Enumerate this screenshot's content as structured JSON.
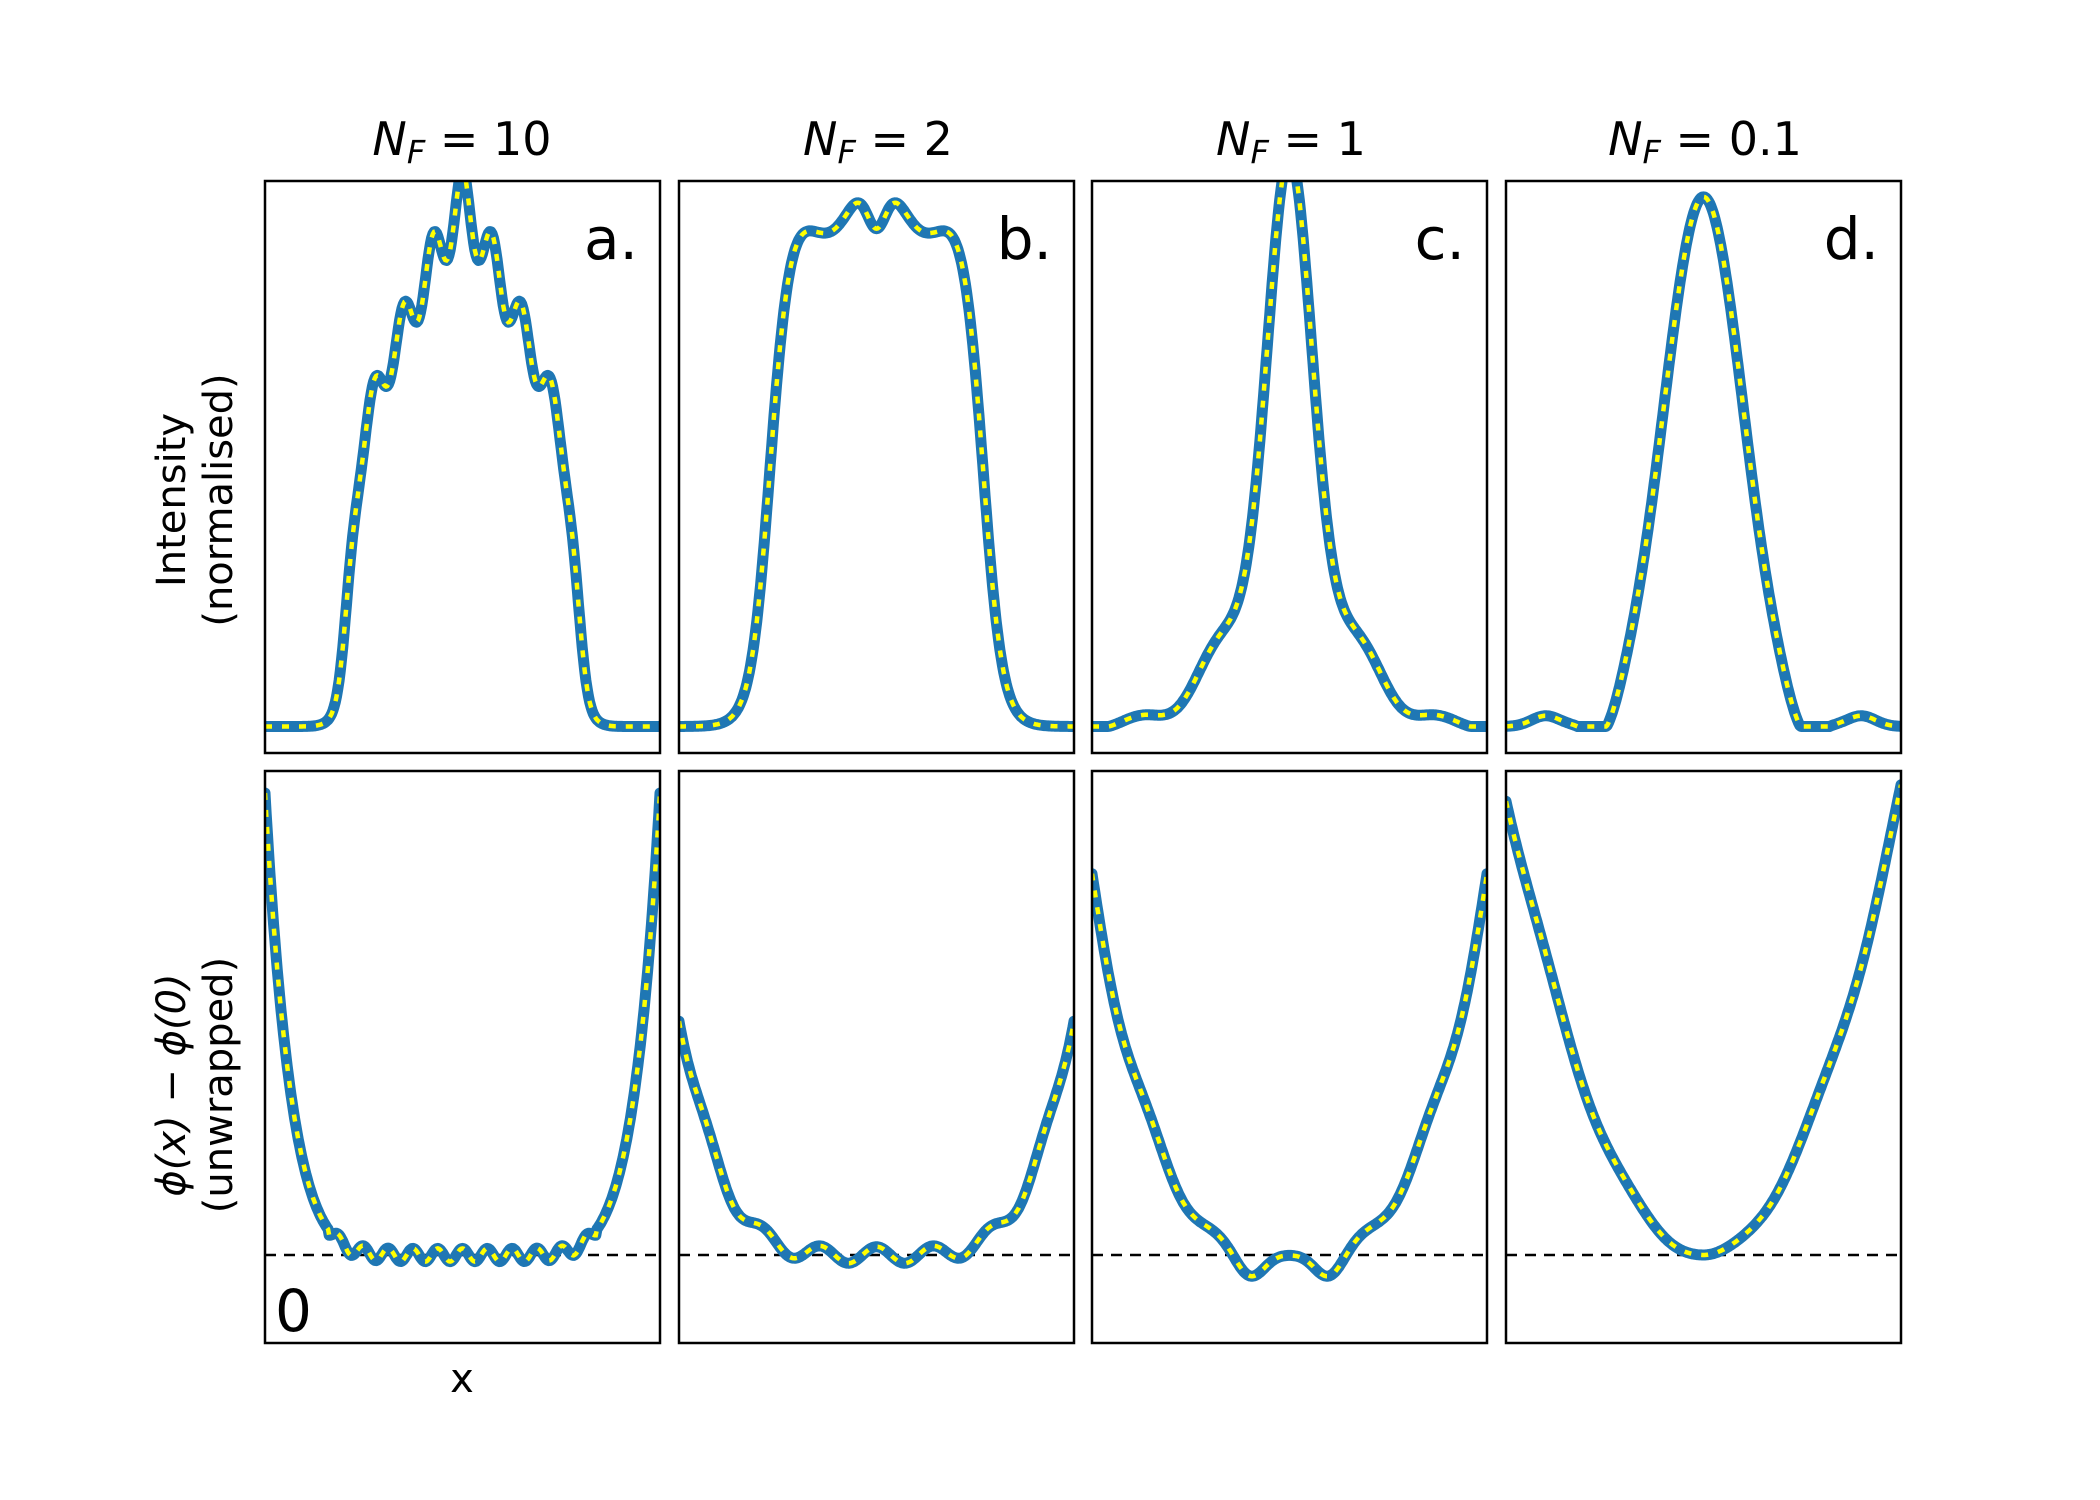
{
  "chart_data": {
    "type": "line",
    "layout": {
      "rows": 2,
      "cols": 4
    },
    "column_titles": [
      "N_F = 10",
      "N_F = 2",
      "N_F = 1",
      "N_F = 0.1"
    ],
    "column_title_parts": [
      {
        "sub": "F",
        "value": "10"
      },
      {
        "sub": "F",
        "value": "2"
      },
      {
        "sub": "F",
        "value": "1"
      },
      {
        "sub": "F",
        "value": "0.1"
      }
    ],
    "panel_letters": [
      "a.",
      "b.",
      "c.",
      "d."
    ],
    "row_ylabels": [
      {
        "line1": "Intensity",
        "line2": "(normalised)"
      },
      {
        "line1": "ϕ(x) − ϕ(0)",
        "line2": "(unwrapped)"
      }
    ],
    "xlabel": "x",
    "zero_label": "0",
    "axes": {
      "ticks": false,
      "grid": false,
      "x_domain": [
        -1,
        1
      ]
    },
    "series_style": {
      "solid_color": "#1f77b4",
      "dotted_color": "#ffff00"
    },
    "intensity": {
      "ylim": [
        0,
        1
      ],
      "fresnel_numbers": [
        10,
        2,
        1,
        0.1
      ]
    },
    "phase": {
      "ylim": [
        -0.16,
        0.88
      ],
      "zero_reference": 0,
      "edge_values": [
        0.84,
        0.44,
        0.68,
        0.84
      ]
    }
  }
}
